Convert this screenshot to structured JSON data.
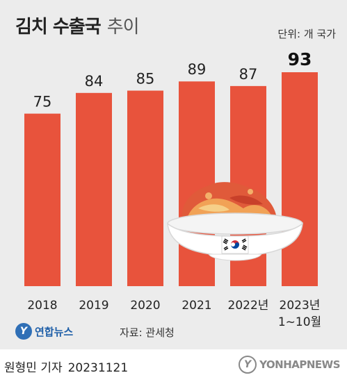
{
  "header": {
    "title": "김치 수출국",
    "subtitle": "추이",
    "unit": "단위: 개 국가"
  },
  "chart_data": {
    "type": "bar",
    "title": "김치 수출국 추이",
    "ylabel": "",
    "xlabel": "",
    "unit": "개 국가",
    "categories": [
      "2018",
      "2019",
      "2020",
      "2021",
      "2022년",
      "2023년\n1~10월"
    ],
    "values": [
      75,
      84,
      85,
      89,
      87,
      93
    ],
    "ylim": [
      0,
      100
    ],
    "grid": false,
    "highlight_index": 5,
    "colors": {
      "bar": "#e8533c",
      "highlight_label": "#111111",
      "label": "#222222"
    }
  },
  "source": {
    "logo_mark": "Y",
    "logo_text": "연합뉴스",
    "text": "자료: 관세청"
  },
  "footer": {
    "byline": "원형민 기자",
    "date": "20231121",
    "watermark_mark": "Y",
    "watermark_text": "YONHAPNEWS"
  },
  "colors": {
    "background": "#ececec",
    "bar": "#e8533c"
  }
}
